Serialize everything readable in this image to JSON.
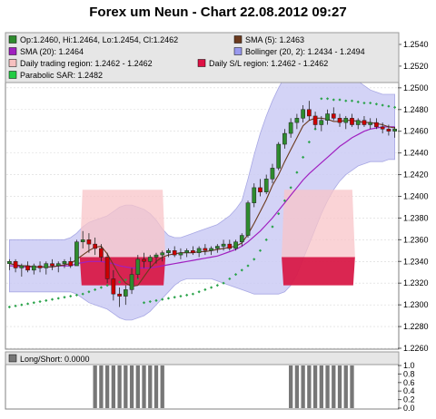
{
  "title": "Forex um Neun - Chart 22.08.2012 09:27",
  "legend": [
    {
      "label": "Op:1.2460, Hi:1.2464, Lo:1.2454, Cl:1.2462",
      "color": "#2e8b2e"
    },
    {
      "label": "SMA (5): 1.2463",
      "color": "#6b3a1e"
    },
    {
      "label": "SMA (20): 1.2464",
      "color": "#a020c0"
    },
    {
      "label": "Bollinger (20, 2): 1.2434 - 1.2494",
      "color": "#9999ee"
    },
    {
      "label": "Daily trading region: 1.2462 - 1.2462",
      "color": "#f6c0c0"
    },
    {
      "label": "Daily S/L region: 1.2462 - 1.2462",
      "color": "#dd1144"
    },
    {
      "label": "Parabolic SAR: 1.2482",
      "color": "#22cc44"
    }
  ],
  "sub_legend": "Long/Short: 0.0000",
  "colors": {
    "up": "#2e8b2e",
    "down": "#cc0000",
    "bollinger_fill": "#ccccf5",
    "bollinger_edge": "#9999e0",
    "sma5": "#6b3a1e",
    "sma20": "#a020c0",
    "sar": "#2aa34a",
    "trade_region": "#f8c4c8",
    "sl_region": "#d81a48",
    "longshort": "#777777",
    "legend_bg": "#e4e4e4"
  },
  "chart_data": [
    {
      "type": "candlestick",
      "ylim": [
        1.226,
        1.255
      ],
      "yticks": [
        "1.2260",
        "1.2280",
        "1.2300",
        "1.2320",
        "1.2340",
        "1.2360",
        "1.2380",
        "1.2400",
        "1.2420",
        "1.2440",
        "1.2460",
        "1.2480",
        "1.2500",
        "1.2520",
        "1.2540"
      ],
      "candles": [
        [
          1.2338,
          1.2342,
          1.2332,
          1.234
        ],
        [
          1.234,
          1.2342,
          1.233,
          1.2334
        ],
        [
          1.2334,
          1.2338,
          1.2326,
          1.2336
        ],
        [
          1.2336,
          1.234,
          1.233,
          1.2332
        ],
        [
          1.2332,
          1.2338,
          1.2328,
          1.2336
        ],
        [
          1.2336,
          1.234,
          1.233,
          1.2334
        ],
        [
          1.2334,
          1.234,
          1.2328,
          1.2338
        ],
        [
          1.2338,
          1.2342,
          1.2332,
          1.2336
        ],
        [
          1.2336,
          1.234,
          1.233,
          1.2338
        ],
        [
          1.2338,
          1.2342,
          1.2334,
          1.234
        ],
        [
          1.234,
          1.2344,
          1.2334,
          1.2336
        ],
        [
          1.2336,
          1.236,
          1.2336,
          1.2358
        ],
        [
          1.2358,
          1.2368,
          1.2352,
          1.236
        ],
        [
          1.236,
          1.2366,
          1.2348,
          1.2356
        ],
        [
          1.2356,
          1.2362,
          1.2346,
          1.2352
        ],
        [
          1.2352,
          1.2356,
          1.234,
          1.2344
        ],
        [
          1.2344,
          1.2348,
          1.232,
          1.2324
        ],
        [
          1.2324,
          1.2332,
          1.2304,
          1.231
        ],
        [
          1.231,
          1.2316,
          1.2298,
          1.2308
        ],
        [
          1.2308,
          1.2318,
          1.23,
          1.2314
        ],
        [
          1.2314,
          1.2334,
          1.231,
          1.2328
        ],
        [
          1.2328,
          1.2346,
          1.2324,
          1.2342
        ],
        [
          1.2342,
          1.2348,
          1.2334,
          1.234
        ],
        [
          1.234,
          1.2346,
          1.2334,
          1.2344
        ],
        [
          1.2344,
          1.2348,
          1.2338,
          1.2346
        ],
        [
          1.2346,
          1.235,
          1.234,
          1.2348
        ],
        [
          1.2348,
          1.2352,
          1.2344,
          1.235
        ],
        [
          1.235,
          1.2354,
          1.2344,
          1.2346
        ],
        [
          1.2346,
          1.2352,
          1.2342,
          1.2348
        ],
        [
          1.2348,
          1.2352,
          1.2344,
          1.235
        ],
        [
          1.235,
          1.2354,
          1.2346,
          1.2348
        ],
        [
          1.2348,
          1.2354,
          1.2344,
          1.2352
        ],
        [
          1.2352,
          1.2356,
          1.2346,
          1.235
        ],
        [
          1.235,
          1.2354,
          1.2346,
          1.2352
        ],
        [
          1.2352,
          1.2356,
          1.2348,
          1.2354
        ],
        [
          1.2354,
          1.236,
          1.235,
          1.2356
        ],
        [
          1.2356,
          1.236,
          1.235,
          1.2352
        ],
        [
          1.2352,
          1.236,
          1.235,
          1.2358
        ],
        [
          1.2358,
          1.2366,
          1.2354,
          1.2364
        ],
        [
          1.2364,
          1.2396,
          1.2362,
          1.2394
        ],
        [
          1.2394,
          1.2412,
          1.239,
          1.2408
        ],
        [
          1.2408,
          1.2416,
          1.24,
          1.2404
        ],
        [
          1.2404,
          1.242,
          1.2402,
          1.2416
        ],
        [
          1.2416,
          1.243,
          1.2412,
          1.2426
        ],
        [
          1.2426,
          1.245,
          1.2424,
          1.2448
        ],
        [
          1.2448,
          1.2462,
          1.2444,
          1.2458
        ],
        [
          1.2458,
          1.2472,
          1.2454,
          1.2468
        ],
        [
          1.2468,
          1.2476,
          1.2462,
          1.2472
        ],
        [
          1.2472,
          1.2484,
          1.2468,
          1.248
        ],
        [
          1.248,
          1.2488,
          1.247,
          1.2474
        ],
        [
          1.2474,
          1.2478,
          1.2462,
          1.2466
        ],
        [
          1.2466,
          1.2474,
          1.246,
          1.247
        ],
        [
          1.247,
          1.248,
          1.2466,
          1.2476
        ],
        [
          1.2476,
          1.2482,
          1.247,
          1.2472
        ],
        [
          1.2472,
          1.2476,
          1.2464,
          1.2468
        ],
        [
          1.2468,
          1.2474,
          1.2462,
          1.2472
        ],
        [
          1.2472,
          1.2476,
          1.2464,
          1.2466
        ],
        [
          1.2466,
          1.2472,
          1.2462,
          1.247
        ],
        [
          1.247,
          1.2474,
          1.2464,
          1.2466
        ],
        [
          1.2466,
          1.2472,
          1.2462,
          1.2468
        ],
        [
          1.2468,
          1.2472,
          1.2462,
          1.2464
        ],
        [
          1.2464,
          1.2468,
          1.2458,
          1.2462
        ],
        [
          1.2462,
          1.2466,
          1.2456,
          1.246
        ],
        [
          1.246,
          1.2464,
          1.2454,
          1.2462
        ]
      ],
      "sma5": [
        1.2338,
        1.2337,
        1.2336,
        1.2336,
        1.2335,
        1.2335,
        1.2335,
        1.2335,
        1.2336,
        1.2337,
        1.2338,
        1.2342,
        1.2346,
        1.235,
        1.2353,
        1.2354,
        1.2347,
        1.2337,
        1.2327,
        1.232,
        1.2317,
        1.2318,
        1.2326,
        1.2334,
        1.234,
        1.2344,
        1.2346,
        1.2347,
        1.2348,
        1.2348,
        1.2348,
        1.2349,
        1.2349,
        1.235,
        1.2351,
        1.2352,
        1.2353,
        1.2354,
        1.2357,
        1.2365,
        1.2375,
        1.2386,
        1.2397,
        1.241,
        1.242,
        1.2432,
        1.2443,
        1.2454,
        1.2465,
        1.247,
        1.2472,
        1.2472,
        1.2471,
        1.2469,
        1.2469,
        1.247,
        1.247,
        1.2469,
        1.2468,
        1.2468,
        1.2467,
        1.2466,
        1.2464,
        1.2463
      ],
      "sma20": [
        1.2336,
        1.2336,
        1.2335,
        1.2335,
        1.2335,
        1.2335,
        1.2335,
        1.2335,
        1.2336,
        1.2336,
        1.2336,
        1.2338,
        1.2339,
        1.234,
        1.234,
        1.234,
        1.2339,
        1.2338,
        1.2336,
        1.2335,
        1.2334,
        1.2334,
        1.2334,
        1.2334,
        1.2335,
        1.2336,
        1.2337,
        1.2338,
        1.2339,
        1.234,
        1.2341,
        1.2342,
        1.2343,
        1.2344,
        1.2345,
        1.2347,
        1.2349,
        1.2351,
        1.2354,
        1.2358,
        1.2363,
        1.2368,
        1.2374,
        1.238,
        1.2387,
        1.2394,
        1.2401,
        1.2408,
        1.2415,
        1.2421,
        1.2426,
        1.2431,
        1.2436,
        1.2441,
        1.2446,
        1.245,
        1.2454,
        1.2457,
        1.246,
        1.2462,
        1.2463,
        1.2464,
        1.2464,
        1.2464
      ],
      "bb_upper": [
        1.236,
        1.236,
        1.236,
        1.236,
        1.236,
        1.236,
        1.236,
        1.236,
        1.236,
        1.236,
        1.2362,
        1.2366,
        1.2372,
        1.2376,
        1.2378,
        1.238,
        1.2382,
        1.2386,
        1.239,
        1.2392,
        1.2392,
        1.239,
        1.2388,
        1.2384,
        1.2378,
        1.237,
        1.2364,
        1.2362,
        1.2362,
        1.2364,
        1.2366,
        1.2368,
        1.237,
        1.2372,
        1.2374,
        1.2378,
        1.2382,
        1.2388,
        1.2396,
        1.2416,
        1.2438,
        1.2458,
        1.2474,
        1.2488,
        1.25,
        1.251,
        1.2516,
        1.252,
        1.2522,
        1.2522,
        1.2522,
        1.2522,
        1.2522,
        1.252,
        1.2518,
        1.2514,
        1.251,
        1.2506,
        1.2502,
        1.2498,
        1.2496,
        1.2494,
        1.2494,
        1.2494
      ],
      "bb_lower": [
        1.2312,
        1.2312,
        1.2312,
        1.2312,
        1.2312,
        1.2312,
        1.2312,
        1.2312,
        1.2312,
        1.2312,
        1.2312,
        1.231,
        1.2306,
        1.2302,
        1.23,
        1.2298,
        1.2296,
        1.2292,
        1.2288,
        1.2286,
        1.2286,
        1.2288,
        1.229,
        1.2294,
        1.23,
        1.2306,
        1.2312,
        1.2318,
        1.2322,
        1.2324,
        1.2324,
        1.2324,
        1.2324,
        1.2324,
        1.2322,
        1.232,
        1.2318,
        1.2316,
        1.2314,
        1.2312,
        1.231,
        1.231,
        1.231,
        1.231,
        1.231,
        1.2312,
        1.2318,
        1.2328,
        1.2342,
        1.2356,
        1.237,
        1.2384,
        1.2396,
        1.2406,
        1.2414,
        1.242,
        1.2424,
        1.2428,
        1.243,
        1.2432,
        1.2432,
        1.2432,
        1.2434,
        1.2434
      ],
      "sar": [
        1.2298,
        1.2299,
        1.23,
        1.2301,
        1.2302,
        1.2303,
        1.2304,
        1.2305,
        1.2306,
        1.2307,
        1.2308,
        1.2309,
        1.231,
        1.2312,
        1.2314,
        1.2316,
        1.2318,
        1.232,
        1.2321,
        1.2323,
        1.2325,
        1.2324,
        1.2302,
        1.2303,
        1.2304,
        1.2305,
        1.2306,
        1.2307,
        1.2308,
        1.2309,
        1.231,
        1.2312,
        1.2314,
        1.2316,
        1.2318,
        1.232,
        1.2324,
        1.2328,
        1.2332,
        1.2336,
        1.2342,
        1.235,
        1.236,
        1.2372,
        1.2384,
        1.2396,
        1.2408,
        1.2422,
        1.2436,
        1.245,
        1.2462,
        1.249,
        1.249,
        1.2489,
        1.2489,
        1.2488,
        1.2488,
        1.2487,
        1.2486,
        1.2486,
        1.2485,
        1.2484,
        1.2483,
        1.2482
      ],
      "trade_regions": [
        {
          "from": 12,
          "to": 25,
          "top": 1.2406,
          "bottom": 1.2344
        },
        {
          "from": 45,
          "to": 56,
          "top": 1.2406,
          "bottom": 1.2344
        }
      ],
      "sl_regions": [
        {
          "from": 12,
          "to": 25,
          "top": 1.2344,
          "bottom": 1.2318
        },
        {
          "from": 45,
          "to": 56,
          "top": 1.2344,
          "bottom": 1.2318
        }
      ]
    },
    {
      "type": "bar",
      "name": "Long/Short",
      "ylim": [
        0,
        1
      ],
      "yticks": [
        "0.0",
        "0.2",
        "0.4",
        "0.6",
        "0.8",
        "1.0"
      ],
      "values": [
        0,
        0,
        0,
        0,
        0,
        0,
        0,
        0,
        0,
        0,
        0,
        0,
        0,
        0,
        1,
        1,
        1,
        1,
        1,
        1,
        1,
        1,
        1,
        1,
        1,
        1,
        0,
        0,
        0,
        0,
        0,
        0,
        0,
        0,
        0,
        0,
        0,
        0,
        0,
        0,
        0,
        0,
        0,
        0,
        0,
        0,
        1,
        1,
        1,
        1,
        1,
        1,
        1,
        1,
        1,
        1,
        1,
        0,
        0,
        0,
        0,
        0,
        0,
        0
      ]
    }
  ]
}
